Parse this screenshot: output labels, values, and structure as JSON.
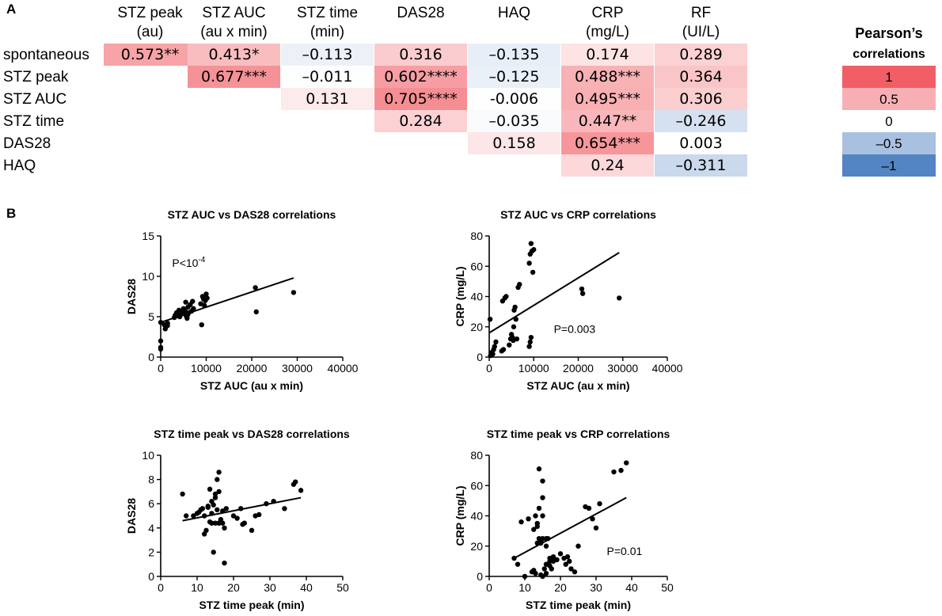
{
  "panel_labels": {
    "a": "A",
    "b": "B"
  },
  "heatmap": {
    "columns": [
      [
        "STZ peak",
        "(au)"
      ],
      [
        "STZ AUC",
        "(au x min)"
      ],
      [
        "STZ time",
        "(min)"
      ],
      [
        "DAS28",
        ""
      ],
      [
        "HAQ",
        ""
      ],
      [
        "CRP",
        "(mg/L)"
      ],
      [
        "RF",
        "(UI/L)"
      ]
    ],
    "rows": [
      "spontaneous",
      "STZ peak",
      "STZ AUC",
      "STZ time",
      "DAS28",
      "HAQ"
    ],
    "cells": [
      [
        {
          "t": "0.573**",
          "v": 0.573
        },
        {
          "t": "0.413*",
          "v": 0.413
        },
        {
          "t": "–0.113",
          "v": -0.113
        },
        {
          "t": "0.316",
          "v": 0.316
        },
        {
          "t": "–0.135",
          "v": -0.135
        },
        {
          "t": "0.174",
          "v": 0.174
        },
        {
          "t": "0.289",
          "v": 0.289
        }
      ],
      [
        null,
        {
          "t": "0.677***",
          "v": 0.677
        },
        {
          "t": "–0.011",
          "v": -0.011
        },
        {
          "t": "0.602****",
          "v": 0.602
        },
        {
          "t": "–0.125",
          "v": -0.125
        },
        {
          "t": "0.488***",
          "v": 0.488
        },
        {
          "t": "0.364",
          "v": 0.364
        }
      ],
      [
        null,
        null,
        {
          "t": "0.131",
          "v": 0.131
        },
        {
          "t": "0.705****",
          "v": 0.705
        },
        {
          "t": "-0.006",
          "v": -0.006
        },
        {
          "t": "0.495***",
          "v": 0.495
        },
        {
          "t": "0.306",
          "v": 0.306
        }
      ],
      [
        null,
        null,
        null,
        {
          "t": "0.284",
          "v": 0.284
        },
        {
          "t": "–0.035",
          "v": -0.035
        },
        {
          "t": "0.447**",
          "v": 0.447
        },
        {
          "t": "–0.246",
          "v": -0.246
        }
      ],
      [
        null,
        null,
        null,
        null,
        {
          "t": "0.158",
          "v": 0.158
        },
        {
          "t": "0.654***",
          "v": 0.654
        },
        {
          "t": "0.003",
          "v": 0.003
        }
      ],
      [
        null,
        null,
        null,
        null,
        null,
        {
          "t": "0.24",
          "v": 0.24
        },
        {
          "t": "–0.311",
          "v": -0.311
        }
      ]
    ],
    "legend": {
      "title": "Pearson’s",
      "subtitle": "correlations",
      "items": [
        {
          "label": "1",
          "v": 1
        },
        {
          "label": "0.5",
          "v": 0.5
        },
        {
          "label": "0",
          "v": 0
        },
        {
          "label": "–0.5",
          "v": -0.5
        },
        {
          "label": "–1",
          "v": -1
        }
      ]
    },
    "colors": {
      "positive": "#f0565e",
      "negative": "#4a7dc0",
      "neutral": "#ffffff"
    }
  },
  "chart_data": [
    {
      "type": "scatter",
      "title": "STZ AUC vs DAS28 correlations",
      "xlabel": "STZ AUC (au x min)",
      "ylabel": "DAS28",
      "xlim": [
        0,
        40000
      ],
      "ylim": [
        0,
        15
      ],
      "xticks": [
        0,
        10000,
        20000,
        30000,
        40000
      ],
      "yticks": [
        0,
        5,
        10,
        15
      ],
      "annotation": {
        "text": "P<10",
        "sup": "-4",
        "x": 2500,
        "y": 11.2
      },
      "fit": {
        "x": [
          0,
          29200
        ],
        "y": [
          4.3,
          9.8
        ]
      },
      "x": [
        0,
        0,
        0,
        0,
        800,
        1000,
        1200,
        1500,
        1500,
        3000,
        3200,
        3500,
        3800,
        4000,
        4200,
        4500,
        4800,
        5000,
        5200,
        5400,
        5500,
        5600,
        5800,
        5900,
        6000,
        6200,
        6500,
        6800,
        7000,
        7200,
        8800,
        9000,
        9200,
        9400,
        9600,
        9800,
        10000,
        10200,
        20800,
        21000,
        29200
      ],
      "y": [
        4.3,
        2.0,
        1.2,
        1.0,
        4.0,
        3.5,
        3.8,
        4.2,
        3.9,
        4.9,
        5.2,
        5.5,
        5.1,
        5.8,
        5.0,
        5.3,
        5.6,
        6.0,
        5.4,
        5.7,
        6.8,
        5.1,
        4.8,
        5.2,
        6.2,
        5.5,
        6.5,
        5.7,
        6.9,
        6.0,
        6.6,
        4.0,
        7.5,
        7.2,
        6.4,
        7.0,
        7.8,
        7.3,
        8.6,
        5.6,
        8.0
      ]
    },
    {
      "type": "scatter",
      "title": "STZ AUC vs CRP correlations",
      "xlabel": "STZ AUC (au x min)",
      "ylabel": "CRP (mg/L)",
      "xlim": [
        0,
        40000
      ],
      "ylim": [
        0,
        80
      ],
      "xticks": [
        0,
        10000,
        20000,
        30000,
        40000
      ],
      "yticks": [
        0,
        20,
        40,
        60,
        80
      ],
      "annotation": {
        "text": "P=0.003",
        "sup": "",
        "x": 14500,
        "y": 16
      },
      "fit": {
        "x": [
          0,
          29200
        ],
        "y": [
          16,
          69
        ]
      },
      "x": [
        200,
        300,
        500,
        800,
        1000,
        1200,
        1500,
        2800,
        3000,
        3200,
        3500,
        3800,
        4500,
        4800,
        5000,
        5200,
        5400,
        5500,
        5600,
        5800,
        6000,
        6200,
        6500,
        6800,
        9000,
        9200,
        9400,
        9600,
        9800,
        10000,
        9000,
        9200,
        9400,
        20800,
        21000,
        29200
      ],
      "y": [
        25,
        1,
        3,
        2,
        5,
        7,
        10,
        4,
        37,
        5,
        39,
        40,
        8,
        12,
        15,
        13,
        11,
        20,
        31,
        33,
        25,
        12,
        46,
        48,
        62,
        68,
        75,
        70,
        56,
        71,
        7,
        10,
        13,
        45,
        42,
        39
      ]
    },
    {
      "type": "scatter",
      "title": "STZ time peak vs DAS28 correlations",
      "xlabel": "STZ time peak (min)",
      "ylabel": "DAS28",
      "xlim": [
        0,
        50
      ],
      "ylim": [
        0,
        10
      ],
      "xticks": [
        0,
        10,
        20,
        30,
        40,
        50
      ],
      "yticks": [
        0,
        2,
        4,
        6,
        8,
        10
      ],
      "annotation": null,
      "fit": {
        "x": [
          6,
          38.5
        ],
        "y": [
          4.6,
          6.5
        ]
      },
      "x": [
        6,
        7,
        9,
        10,
        10.5,
        11,
        11.5,
        12,
        12,
        12.5,
        13,
        13,
        13.5,
        13.5,
        14,
        14,
        14,
        14.5,
        14.5,
        15,
        15,
        15,
        15.5,
        15.5,
        16,
        16,
        16,
        16,
        16.5,
        17,
        17,
        17.5,
        17.5,
        18,
        20,
        21,
        22,
        22.5,
        23,
        25,
        26,
        27,
        29,
        31,
        34,
        36.5,
        37,
        38.5
      ],
      "y": [
        6.8,
        5.0,
        5.0,
        5.2,
        5.3,
        5.5,
        5.6,
        3.5,
        5.0,
        3.8,
        5.8,
        5.7,
        4.5,
        7.2,
        6.2,
        5.2,
        4.4,
        2.0,
        5.9,
        6.8,
        4.4,
        6.5,
        8.0,
        5.5,
        8.6,
        7.0,
        4.4,
        4.4,
        4.7,
        4.4,
        5.4,
        1.1,
        4.0,
        5.6,
        5.0,
        4.8,
        5.6,
        4.3,
        4.4,
        3.8,
        5.0,
        5.1,
        6.0,
        6.2,
        5.6,
        7.6,
        7.8,
        7.1
      ]
    },
    {
      "type": "scatter",
      "title": "STZ time peak vs CRP correlations",
      "xlabel": "STZ time peak (min)",
      "ylabel": "CRP (mg/L)",
      "xlim": [
        0,
        50
      ],
      "ylim": [
        0,
        80
      ],
      "xticks": [
        0,
        10,
        20,
        30,
        40,
        50
      ],
      "yticks": [
        0,
        20,
        40,
        60,
        80
      ],
      "annotation": {
        "text": "P=0.01",
        "sup": "",
        "x": 33,
        "y": 14
      },
      "fit": {
        "x": [
          7,
          38.5
        ],
        "y": [
          12,
          52
        ]
      },
      "x": [
        7,
        8,
        9,
        10,
        11,
        12,
        12.5,
        12.5,
        13,
        13,
        13.5,
        13.5,
        13.5,
        14,
        14,
        14,
        14.5,
        14.5,
        14.5,
        15,
        15,
        15,
        15,
        15,
        15.5,
        16,
        16,
        16,
        16,
        16.5,
        17,
        17,
        17,
        17.5,
        18,
        18,
        19,
        20,
        21,
        21.5,
        22,
        22.5,
        23,
        24,
        25,
        27,
        28,
        29,
        30,
        31,
        35,
        37,
        38.5
      ],
      "y": [
        12,
        8,
        36,
        0,
        38,
        3,
        31,
        4,
        40,
        2,
        35,
        33,
        22,
        71,
        45,
        25,
        23,
        1,
        22,
        63,
        52,
        40,
        25,
        0,
        5,
        25,
        20,
        8,
        2,
        25,
        12,
        10,
        7,
        5,
        13,
        10,
        11,
        15,
        12,
        8,
        13,
        10,
        5,
        3,
        20,
        46,
        45,
        38,
        32,
        48,
        69,
        70,
        75
      ]
    }
  ]
}
